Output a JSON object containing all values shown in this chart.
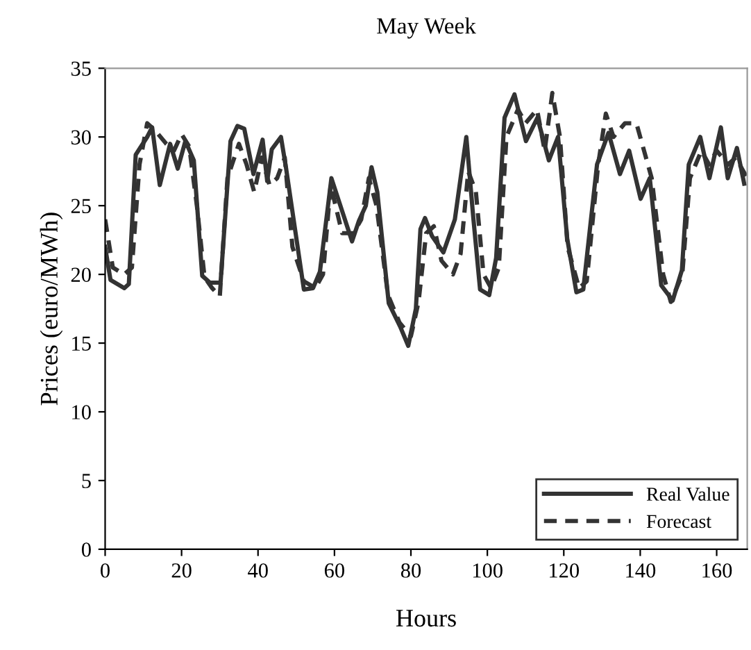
{
  "chart_data": {
    "type": "line",
    "title": "May Week",
    "xlabel": "Hours",
    "ylabel": "Prices (euro/MWh)",
    "xlim": [
      0,
      168
    ],
    "xticks": [
      0,
      20,
      40,
      60,
      80,
      100,
      120,
      140,
      160
    ],
    "ylim": [
      0,
      35
    ],
    "yticks": [
      0,
      5,
      10,
      15,
      20,
      25,
      30,
      35
    ],
    "grid": false,
    "legend": "bottom right",
    "marker": "none",
    "series": [
      {
        "name": "Real Value",
        "color": "#333333",
        "line_style": "solid",
        "x": [
          0,
          1.4,
          5,
          6.2,
          8,
          11,
          12.3,
          14.3,
          17,
          19,
          21,
          23.2,
          25.4,
          27.4,
          30.2,
          32.8,
          34.6,
          36.4,
          38.8,
          41.2,
          42.4,
          43.6,
          46,
          47.3,
          52,
          54.4,
          56.2,
          59.2,
          64.6,
          66.4,
          68.2,
          69.7,
          71.2,
          74.2,
          77.2,
          79.3,
          81.3,
          82.5,
          83.7,
          85.5,
          88.5,
          91.5,
          94.5,
          96.3,
          98.1,
          100.5,
          102.3,
          104.5,
          107.1,
          110.1,
          113.1,
          116.1,
          118.5,
          120.9,
          123.3,
          125.1,
          128.7,
          131.7,
          134.7,
          137.1,
          140.1,
          142.5,
          145.5,
          148.5,
          150.9,
          152.7,
          155.7,
          158.1,
          161.1,
          162.9,
          165.3,
          167.2
        ],
        "values": [
          22,
          19.6,
          19,
          19.3,
          28.7,
          30,
          30.7,
          26.5,
          29.5,
          27.7,
          29.7,
          28.3,
          19.9,
          19.4,
          19.4,
          29.7,
          30.8,
          30.6,
          27.3,
          29.8,
          26.8,
          29.1,
          30,
          27.8,
          18.9,
          19,
          20.2,
          27,
          22.4,
          23.9,
          25,
          27.8,
          26,
          17.9,
          16.2,
          14.8,
          17.5,
          23.3,
          24.1,
          22.8,
          21.6,
          24,
          30,
          24.2,
          18.9,
          18.5,
          21.2,
          31.4,
          33.1,
          29.7,
          31.4,
          28.3,
          30,
          22.6,
          18.7,
          18.9,
          28,
          30.3,
          27.3,
          29,
          25.5,
          27,
          19.2,
          18.1,
          20.3,
          28,
          30,
          27,
          30.7,
          27,
          29.2,
          26.6
        ]
      },
      {
        "name": "Forecast",
        "color": "#333333",
        "line_style": "dashed",
        "x": [
          0,
          2,
          5,
          7,
          9,
          11,
          13,
          16,
          18,
          20,
          22,
          24,
          26,
          28,
          30,
          32,
          35,
          37,
          39,
          41,
          43,
          45,
          47,
          49,
          52,
          55,
          57,
          59,
          62,
          65,
          67,
          69,
          71,
          74,
          77,
          80,
          82,
          84,
          86,
          88,
          91,
          93,
          95,
          97,
          99,
          101,
          103,
          105,
          108,
          110,
          113,
          115,
          117,
          119,
          121,
          124,
          126,
          129,
          131,
          133,
          136,
          139,
          141,
          143,
          146,
          148,
          151,
          153,
          156,
          158,
          160,
          163,
          165,
          168
        ],
        "values": [
          24,
          20.5,
          20,
          20.5,
          28,
          31,
          30.5,
          29.5,
          29,
          30.2,
          29.3,
          25,
          19.8,
          19,
          18.4,
          27,
          29.5,
          28,
          26,
          28.5,
          26.5,
          27,
          28.5,
          22,
          19.5,
          19,
          20,
          26.5,
          23,
          23,
          24,
          27,
          25,
          18.5,
          16.5,
          15.5,
          18,
          23,
          23.5,
          21,
          20,
          21.5,
          27.5,
          26,
          20,
          19,
          20.5,
          30,
          32,
          31,
          32,
          29,
          33.2,
          30,
          22,
          19,
          19.5,
          28,
          31.7,
          30,
          31,
          31,
          29,
          27,
          20,
          18,
          20,
          27,
          29,
          28,
          29,
          28,
          28.5,
          27
        ]
      }
    ]
  }
}
